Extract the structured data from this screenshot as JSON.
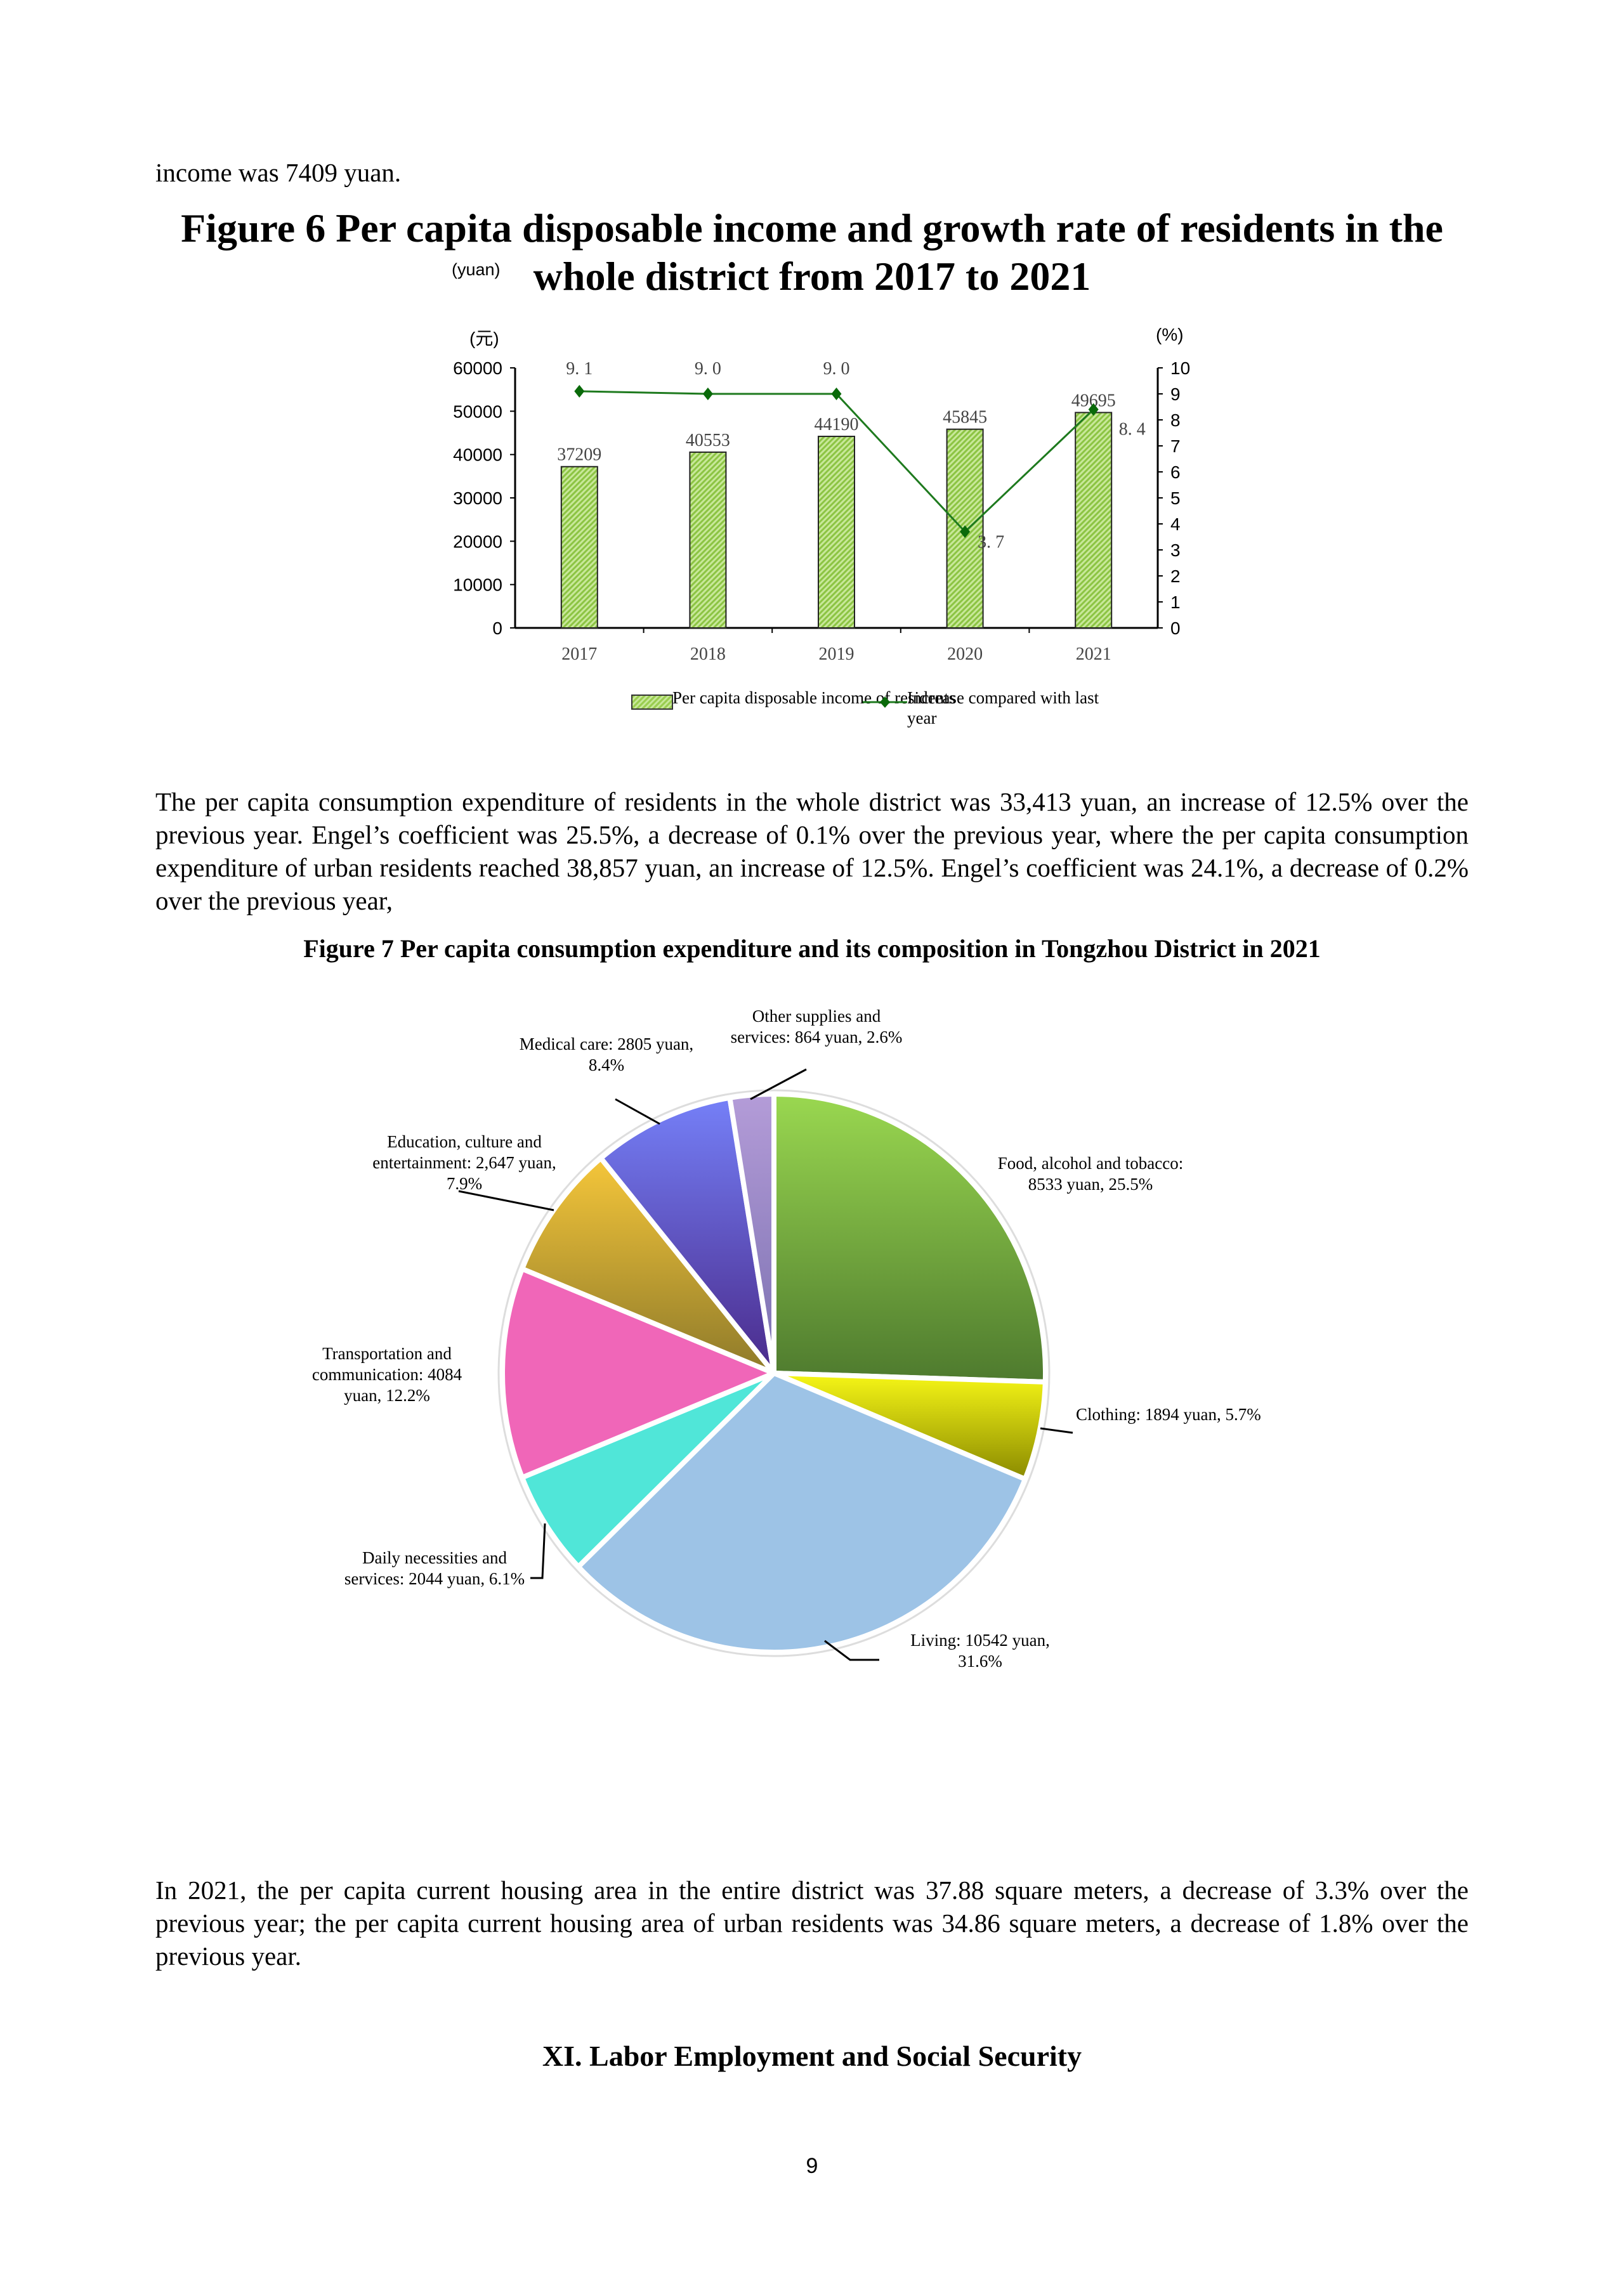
{
  "intro_line": "income was 7409 yuan.",
  "figure6": {
    "title": "Figure 6 Per capita disposable income and growth rate of residents in the whole district from 2017 to 2021",
    "overlay_unit": "(yuan)"
  },
  "chart_data": [
    {
      "type": "bar+line",
      "categories": [
        "2017",
        "2018",
        "2019",
        "2020",
        "2021"
      ],
      "series": [
        {
          "name": "Per capita disposable income of residents",
          "type": "bar",
          "axis": "left",
          "values": [
            37209,
            40553,
            44190,
            45845,
            49695
          ],
          "color": "#9acd50"
        },
        {
          "name": "Increase compared with last year",
          "type": "line",
          "axis": "right",
          "values": [
            9.1,
            9.0,
            9.0,
            3.7,
            8.4
          ],
          "labels": [
            "9.1",
            "9.0",
            "9.0",
            "3.7",
            "8.4"
          ],
          "color": "#1e7a1e"
        }
      ],
      "left_axis": {
        "unit": "(元)",
        "ylim": [
          0,
          60000
        ],
        "ticks": [
          "0",
          "10000",
          "20000",
          "30000",
          "40000",
          "50000",
          "60000"
        ]
      },
      "right_axis": {
        "unit": "(%)",
        "ylim": [
          0,
          10
        ],
        "ticks": [
          "0",
          "1",
          "2",
          "3",
          "4",
          "5",
          "6",
          "7",
          "8",
          "9",
          "10"
        ]
      },
      "legend": "bottom",
      "grid": false
    },
    {
      "type": "pie",
      "title": "Figure 7 Per capita consumption expenditure and its composition in Tongzhou District in 2021",
      "slices": [
        {
          "label": "Food, alcohol and tobacco: 8533 yuan, 25.5%",
          "value": 8533,
          "percent": 25.5,
          "color": "#9ad850",
          "color2": "#4e7a2e"
        },
        {
          "label": "Clothing: 1894 yuan, 5.7%",
          "value": 1894,
          "percent": 5.7,
          "color": "#f7f716",
          "color2": "#8a8a00"
        },
        {
          "label": "Living: 10542 yuan, 31.6%",
          "value": 10542,
          "percent": 31.6,
          "color": "#9dc3e6",
          "color2": "#9dc3e6"
        },
        {
          "label": "Daily necessities and services: 2044 yuan, 6.1%",
          "value": 2044,
          "percent": 6.1,
          "color": "#50e6d8",
          "color2": "#50e6d8"
        },
        {
          "label": "Transportation and communication: 4084 yuan, 12.2%",
          "value": 4084,
          "percent": 12.2,
          "color": "#f066b8",
          "color2": "#f066b8"
        },
        {
          "label": "Education, culture and entertainment: 2,647 yuan, 7.9%",
          "value": 2647,
          "percent": 7.9,
          "color": "#f5c63a",
          "color2": "#8e7a2a"
        },
        {
          "label": "Medical care: 2805 yuan, 8.4%",
          "value": 2805,
          "percent": 8.4,
          "color": "#7580f8",
          "color2": "#4a2a8a"
        },
        {
          "label": "Other supplies and services: 864 yuan, 2.6%",
          "value": 864,
          "percent": 2.6,
          "color": "#b49cd8",
          "color2": "#7a70b0"
        }
      ]
    }
  ],
  "paragraph_consumption": "The per capita consumption expenditure of residents in the whole district was 33,413 yuan, an increase of 12.5% over the previous year. Engel’s coefficient was 25.5%, a decrease of 0.1% over the previous year, where the per capita consumption expenditure of urban residents reached 38,857 yuan, an increase of 12.5%. Engel’s coefficient was 24.1%, a decrease of 0.2% over the previous year,",
  "paragraph_housing": "In 2021, the per capita current housing area in the entire district was 37.88 square meters, a decrease of 3.3% over the previous year; the per capita current housing area of urban residents was 34.86 square meters, a decrease of 1.8% over the previous year.",
  "section_heading": "XI. Labor Employment and Social Security",
  "page_number": "9"
}
